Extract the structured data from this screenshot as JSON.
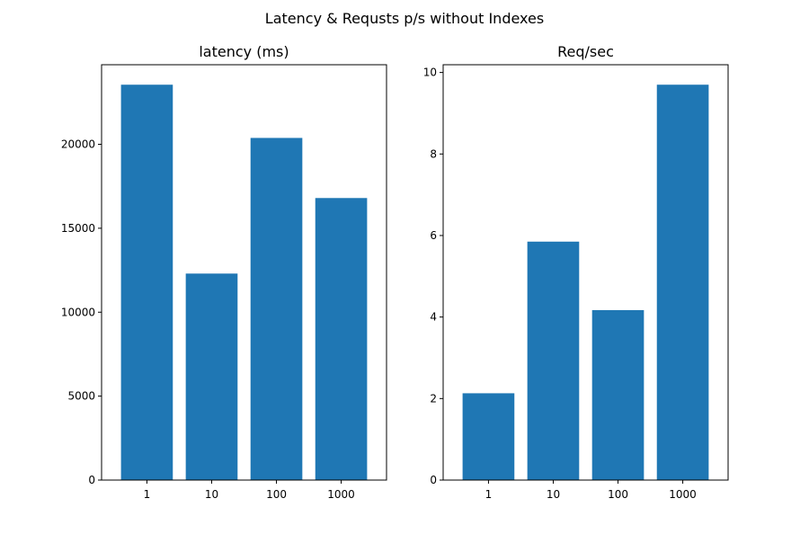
{
  "figure": {
    "suptitle": "Latency & Requsts p/s without Indexes"
  },
  "chart_data": [
    {
      "type": "bar",
      "title": "latency (ms)",
      "xlabel": "",
      "ylabel": "",
      "categories": [
        "1",
        "10",
        "100",
        "1000"
      ],
      "values": [
        23550,
        12300,
        20380,
        16800
      ],
      "ylim": [
        0,
        24740
      ],
      "yticks": [
        0,
        5000,
        10000,
        15000,
        20000
      ],
      "bar_color": "#1f77b4",
      "grid": false,
      "legend": "none"
    },
    {
      "type": "bar",
      "title": "Req/sec",
      "xlabel": "",
      "ylabel": "",
      "categories": [
        "1",
        "10",
        "100",
        "1000"
      ],
      "values": [
        2.13,
        5.85,
        4.17,
        9.7
      ],
      "ylim": [
        0,
        10.19
      ],
      "yticks": [
        0,
        2,
        4,
        6,
        8,
        10
      ],
      "bar_color": "#1f77b4",
      "grid": false,
      "legend": "none"
    }
  ]
}
